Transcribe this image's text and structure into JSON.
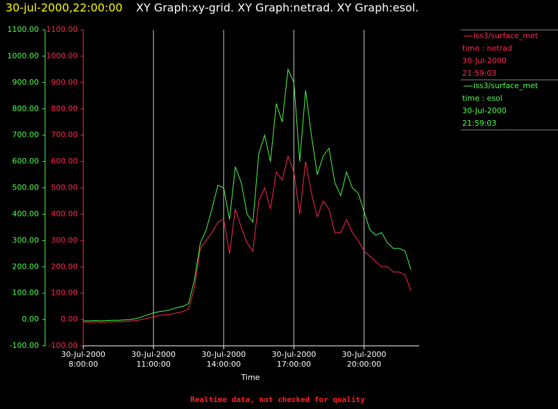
{
  "chart_data": {
    "type": "line",
    "title_time": "30-jul-2000,22:00:00",
    "title": "XY Graph:xy-grid.  XY Graph:netrad.  XY Graph:esol.",
    "xlabel": "Time",
    "footer": "Realtime data, not checked for quality",
    "x": [
      "2000-07-30T08:00",
      "2000-07-30T08:15",
      "2000-07-30T08:30",
      "2000-07-30T08:45",
      "2000-07-30T09:00",
      "2000-07-30T09:15",
      "2000-07-30T09:30",
      "2000-07-30T09:45",
      "2000-07-30T10:00",
      "2000-07-30T10:15",
      "2000-07-30T10:30",
      "2000-07-30T10:45",
      "2000-07-30T11:00",
      "2000-07-30T11:15",
      "2000-07-30T11:30",
      "2000-07-30T11:45",
      "2000-07-30T12:00",
      "2000-07-30T12:15",
      "2000-07-30T12:30",
      "2000-07-30T12:45",
      "2000-07-30T13:00",
      "2000-07-30T13:15",
      "2000-07-30T13:30",
      "2000-07-30T13:45",
      "2000-07-30T14:00",
      "2000-07-30T14:15",
      "2000-07-30T14:30",
      "2000-07-30T14:45",
      "2000-07-30T15:00",
      "2000-07-30T15:15",
      "2000-07-30T15:30",
      "2000-07-30T15:45",
      "2000-07-30T16:00",
      "2000-07-30T16:15",
      "2000-07-30T16:30",
      "2000-07-30T16:45",
      "2000-07-30T17:00",
      "2000-07-30T17:15",
      "2000-07-30T17:30",
      "2000-07-30T17:45",
      "2000-07-30T18:00",
      "2000-07-30T18:15",
      "2000-07-30T18:30",
      "2000-07-30T18:45",
      "2000-07-30T19:00",
      "2000-07-30T19:15",
      "2000-07-30T19:30",
      "2000-07-30T19:45",
      "2000-07-30T20:00",
      "2000-07-30T20:15",
      "2000-07-30T20:30",
      "2000-07-30T20:45",
      "2000-07-30T21:00",
      "2000-07-30T21:15",
      "2000-07-30T21:30",
      "2000-07-30T21:45",
      "2000-07-30T22:00"
    ],
    "xlim": [
      "2000-07-30T08:00",
      "2000-07-30T22:00"
    ],
    "xticks": [
      {
        "value": "2000-07-30T08:00",
        "label": [
          "30-Jul-2000",
          "8:00:00"
        ]
      },
      {
        "value": "2000-07-30T11:00",
        "label": [
          "30-Jul-2000",
          "11:00:00"
        ]
      },
      {
        "value": "2000-07-30T14:00",
        "label": [
          "30-Jul-2000",
          "14:00:00"
        ]
      },
      {
        "value": "2000-07-30T17:00",
        "label": [
          "30-Jul-2000",
          "17:00:00"
        ]
      },
      {
        "value": "2000-07-30T20:00",
        "label": [
          "30-Jul-2000",
          "20:00:00"
        ]
      }
    ],
    "ylim": [
      -100,
      1100
    ],
    "yticks": [
      {
        "value": -100,
        "label": "-100.00"
      },
      {
        "value": 0,
        "label": "0.00"
      },
      {
        "value": 100,
        "label": "100.00"
      },
      {
        "value": 200,
        "label": "200.00"
      },
      {
        "value": 300,
        "label": "300.00"
      },
      {
        "value": 400,
        "label": "400.00"
      },
      {
        "value": 500,
        "label": "500.00"
      },
      {
        "value": 600,
        "label": "600.00"
      },
      {
        "value": 700,
        "label": "700.00"
      },
      {
        "value": 800,
        "label": "800.00"
      },
      {
        "value": 900,
        "label": "900.00"
      },
      {
        "value": 1000,
        "label": "1000.00"
      },
      {
        "value": 1100,
        "label": "1100.00"
      }
    ],
    "y2lim": [
      -100,
      1100
    ],
    "y2ticks": [
      {
        "value": -100,
        "label": "-100.00"
      },
      {
        "value": 0,
        "label": "0.00"
      },
      {
        "value": 100,
        "label": "100.00"
      },
      {
        "value": 200,
        "label": "200.00"
      },
      {
        "value": 300,
        "label": "300.00"
      },
      {
        "value": 400,
        "label": "400.00"
      },
      {
        "value": 500,
        "label": "500.00"
      },
      {
        "value": 600,
        "label": "600.00"
      },
      {
        "value": 700,
        "label": "700.00"
      },
      {
        "value": 800,
        "label": "800.00"
      },
      {
        "value": 900,
        "label": "900.00"
      },
      {
        "value": 1000,
        "label": "1000.00"
      },
      {
        "value": 1100,
        "label": "1100.00"
      }
    ],
    "grid": true,
    "series": [
      {
        "name": "iss3/surface_met",
        "label": "time : netrad",
        "date": "30-Jul-2000",
        "time": "21:59:03",
        "color": "#ff2a50",
        "axis": "y2",
        "values": [
          -10,
          -10,
          -10,
          -10,
          -10,
          -9,
          -9,
          -8,
          -6,
          -4,
          0,
          5,
          10,
          15,
          18,
          20,
          25,
          30,
          40,
          120,
          270,
          300,
          330,
          370,
          380,
          250,
          420,
          350,
          290,
          260,
          450,
          500,
          420,
          560,
          530,
          620,
          560,
          400,
          600,
          480,
          390,
          450,
          420,
          330,
          330,
          380,
          330,
          300,
          260,
          240,
          220,
          200,
          200,
          180,
          180,
          170,
          110
        ]
      },
      {
        "name": "iss3/surface_met",
        "label": "time : esol",
        "date": "30-Jul-2000",
        "time": "21:59:03",
        "color": "#4cff4c",
        "values": [
          -5,
          -5,
          -4,
          -5,
          -4,
          -3,
          -3,
          -2,
          0,
          3,
          10,
          18,
          25,
          30,
          33,
          38,
          45,
          50,
          60,
          150,
          290,
          340,
          420,
          510,
          500,
          380,
          580,
          520,
          400,
          370,
          630,
          700,
          600,
          820,
          750,
          950,
          900,
          600,
          870,
          700,
          550,
          620,
          650,
          520,
          470,
          560,
          500,
          480,
          410,
          340,
          320,
          330,
          290,
          270,
          270,
          260,
          190
        ]
      }
    ]
  }
}
